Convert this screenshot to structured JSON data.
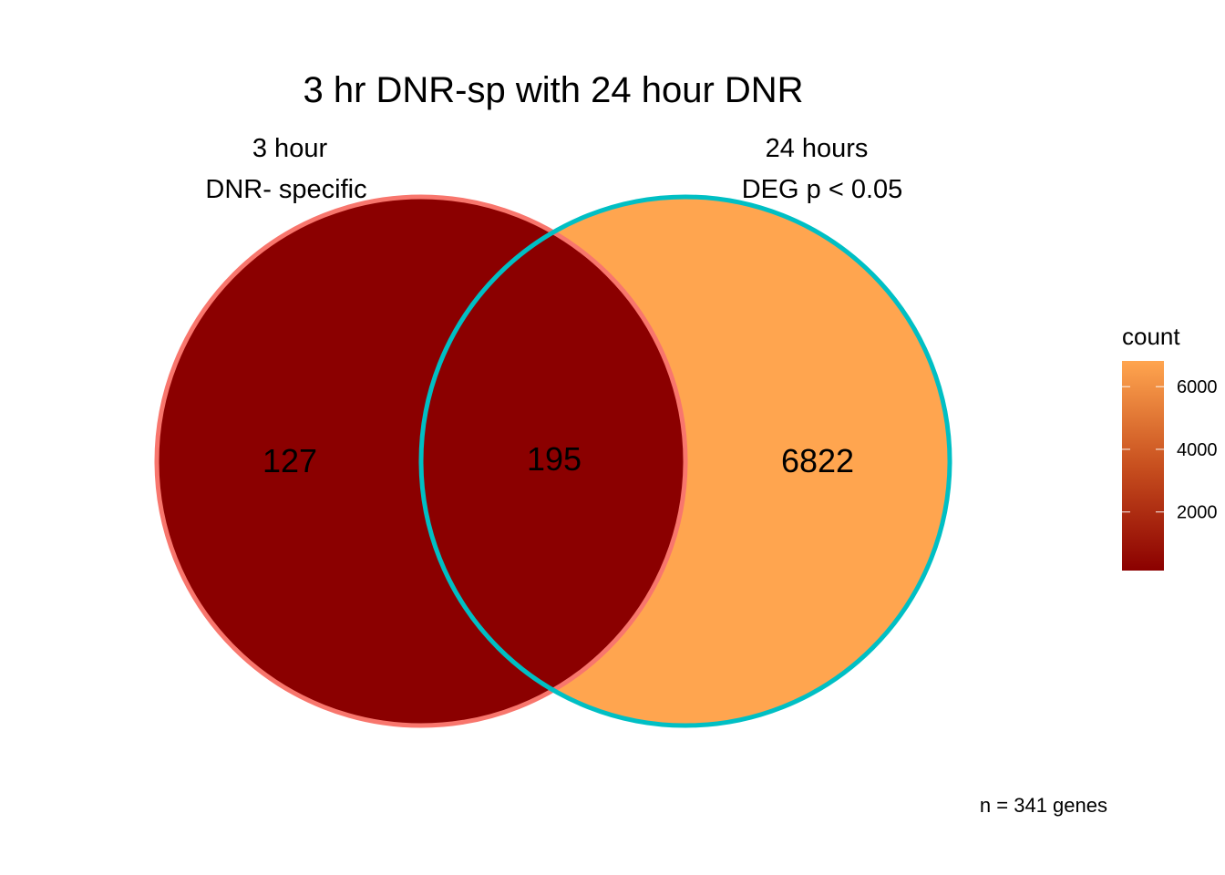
{
  "chart_data": {
    "type": "venn",
    "title": "3 hr DNR-sp with 24 hour DNR",
    "sets": [
      {
        "label_line1": "3 hour",
        "label_line2": "DNR- specific",
        "edge_color": "#F8766D"
      },
      {
        "label_line1": "24 hours",
        "label_line2": "DEG p < 0.05",
        "edge_color": "#00BFC4"
      }
    ],
    "regions": [
      {
        "name": "only_3h",
        "count": 127,
        "fill": "#8B0000"
      },
      {
        "name": "both",
        "count": 195,
        "fill": "#8B0000"
      },
      {
        "name": "only_24h",
        "count": 6822,
        "fill": "#FFA54F"
      }
    ],
    "legend": {
      "title": "count",
      "range": [
        127,
        6822
      ],
      "ticks": [
        2000,
        4000,
        6000
      ],
      "low_color": "#8B0000",
      "high_color": "#FFA54F",
      "position": "right"
    },
    "caption": "n = 341 genes"
  }
}
